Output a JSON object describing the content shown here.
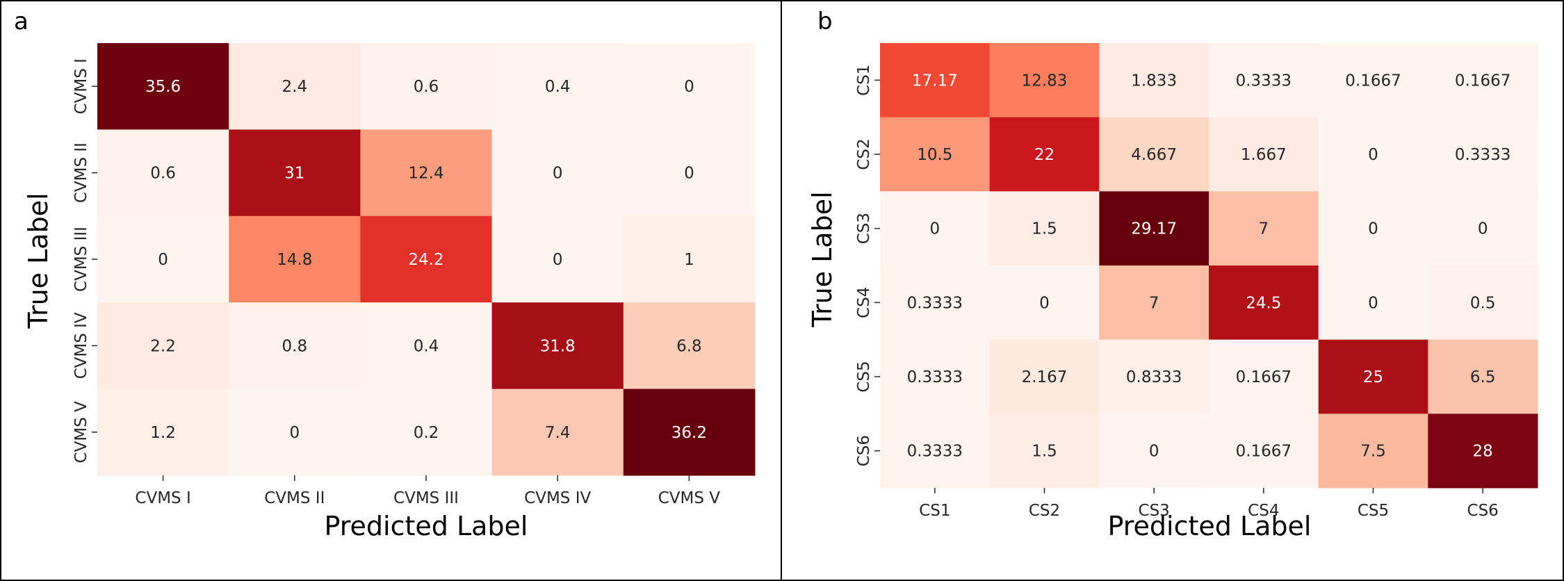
{
  "chart_data": [
    {
      "type": "heatmap",
      "panel": "a",
      "xlabel": "Predicted Label",
      "ylabel": "True Label",
      "x_categories": [
        "CVMS I",
        "CVMS II",
        "CVMS III",
        "CVMS IV",
        "CVMS V"
      ],
      "y_categories": [
        "CVMS I",
        "CVMS II",
        "CVMS III",
        "CVMS IV",
        "CVMS V"
      ],
      "values": [
        [
          "35.6",
          "2.4",
          "0.6",
          "0.4",
          "0"
        ],
        [
          "0.6",
          "31",
          "12.4",
          "0",
          "0"
        ],
        [
          "0",
          "14.8",
          "24.2",
          "0",
          "1"
        ],
        [
          "2.2",
          "0.8",
          "0.4",
          "31.8",
          "6.8"
        ],
        [
          "1.2",
          "0",
          "0.2",
          "7.4",
          "36.2"
        ]
      ],
      "colormap": "Reds",
      "colorbar": false
    },
    {
      "type": "heatmap",
      "panel": "b",
      "xlabel": "Predicted Label",
      "ylabel": "True Label",
      "x_categories": [
        "CS1",
        "CS2",
        "CS3",
        "CS4",
        "CS5",
        "CS6"
      ],
      "y_categories": [
        "CS1",
        "CS2",
        "CS3",
        "CS4",
        "CS5",
        "CS6"
      ],
      "values": [
        [
          "17.17",
          "12.83",
          "1.833",
          "0.3333",
          "0.1667",
          "0.1667"
        ],
        [
          "10.5",
          "22",
          "4.667",
          "1.667",
          "0",
          "0.3333"
        ],
        [
          "0",
          "1.5",
          "29.17",
          "7",
          "0",
          "0"
        ],
        [
          "0.3333",
          "0",
          "7",
          "24.5",
          "0",
          "0.5"
        ],
        [
          "0.3333",
          "2.167",
          "0.8333",
          "0.1667",
          "25",
          "6.5"
        ],
        [
          "0.3333",
          "1.5",
          "0",
          "0.1667",
          "7.5",
          "28"
        ]
      ],
      "colormap": "Reds",
      "colorbar": false
    }
  ]
}
